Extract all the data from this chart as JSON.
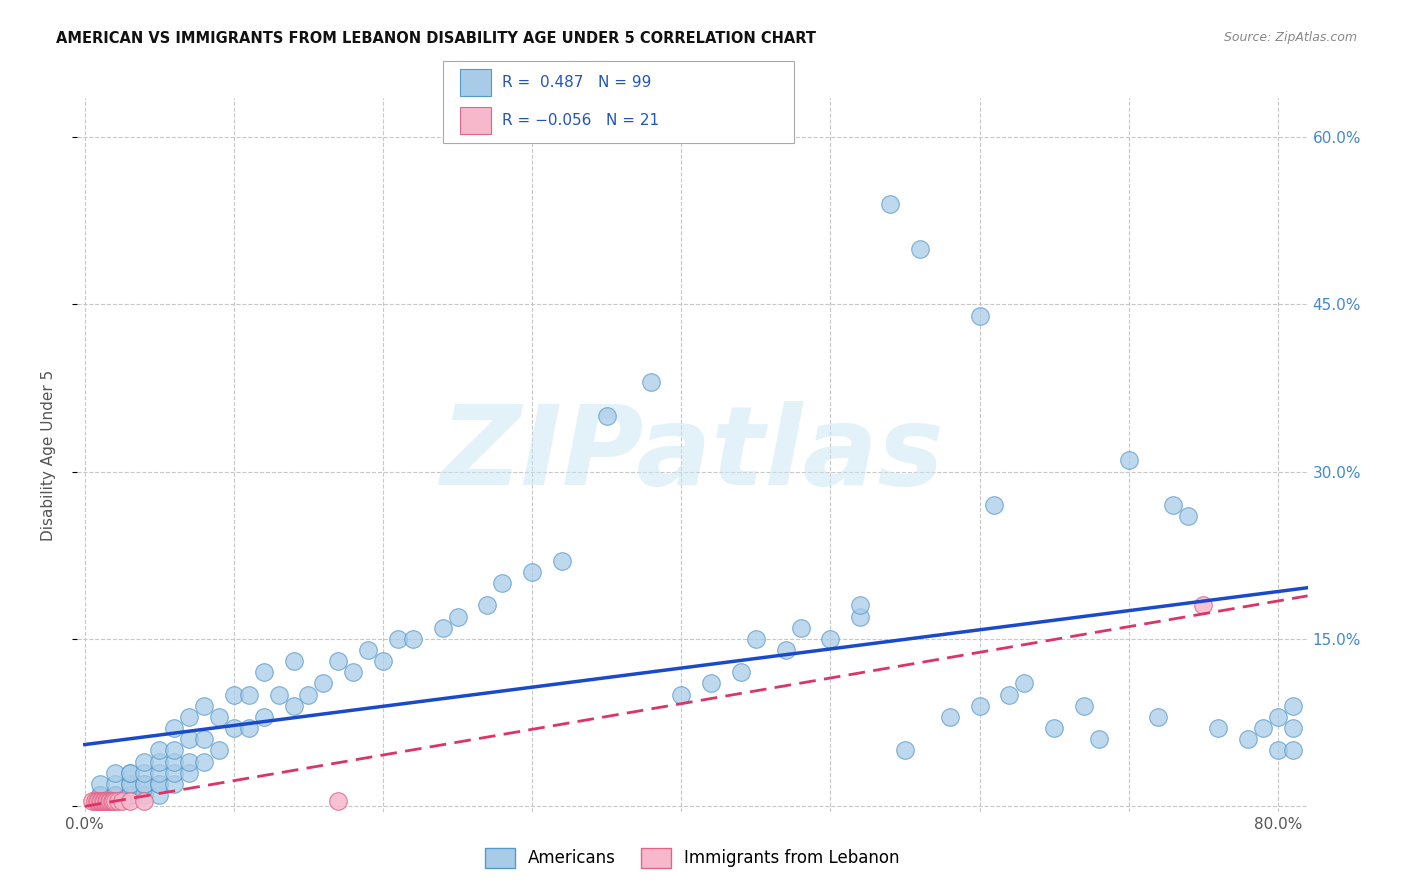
{
  "title": "AMERICAN VS IMMIGRANTS FROM LEBANON DISABILITY AGE UNDER 5 CORRELATION CHART",
  "source": "Source: ZipAtlas.com",
  "ylabel": "Disability Age Under 5",
  "xlim": [
    -0.005,
    0.82
  ],
  "ylim": [
    -0.005,
    0.635
  ],
  "xtick_positions": [
    0.0,
    0.1,
    0.2,
    0.3,
    0.4,
    0.5,
    0.6,
    0.7,
    0.8
  ],
  "xticklabels": [
    "0.0%",
    "",
    "",
    "",
    "",
    "",
    "",
    "",
    "80.0%"
  ],
  "ytick_positions": [
    0.0,
    0.15,
    0.3,
    0.45,
    0.6
  ],
  "yticklabels": [
    "",
    "15.0%",
    "30.0%",
    "45.0%",
    "60.0%"
  ],
  "grid_color": "#c8c8c8",
  "background_color": "#ffffff",
  "americans_color": "#a8cce8",
  "americans_edge_color": "#5599cc",
  "lebanon_color": "#f8b8cc",
  "lebanon_edge_color": "#e06688",
  "trend_blue_color": "#1a4acc",
  "trend_pink_color": "#dd3366",
  "trend_pink_dash": [
    6,
    3
  ],
  "watermark": "ZIPatlas",
  "legend_label_1": "Americans",
  "legend_label_2": "Immigrants from Lebanon",
  "americans_x": [
    0.01,
    0.01,
    0.01,
    0.01,
    0.02,
    0.02,
    0.02,
    0.02,
    0.02,
    0.03,
    0.03,
    0.03,
    0.03,
    0.03,
    0.03,
    0.03,
    0.04,
    0.04,
    0.04,
    0.04,
    0.04,
    0.05,
    0.05,
    0.05,
    0.05,
    0.05,
    0.05,
    0.06,
    0.06,
    0.06,
    0.06,
    0.06,
    0.07,
    0.07,
    0.07,
    0.07,
    0.08,
    0.08,
    0.08,
    0.09,
    0.09,
    0.1,
    0.1,
    0.11,
    0.11,
    0.12,
    0.12,
    0.13,
    0.14,
    0.14,
    0.15,
    0.16,
    0.17,
    0.18,
    0.19,
    0.2,
    0.21,
    0.22,
    0.24,
    0.25,
    0.27,
    0.28,
    0.3,
    0.32,
    0.35,
    0.38,
    0.4,
    0.42,
    0.44,
    0.45,
    0.47,
    0.48,
    0.5,
    0.52,
    0.54,
    0.56,
    0.58,
    0.6,
    0.61,
    0.62,
    0.63,
    0.65,
    0.67,
    0.68,
    0.7,
    0.72,
    0.74,
    0.76,
    0.78,
    0.79,
    0.8,
    0.8,
    0.81,
    0.81,
    0.81,
    0.73,
    0.6,
    0.55,
    0.52
  ],
  "americans_y": [
    0.01,
    0.01,
    0.01,
    0.02,
    0.01,
    0.01,
    0.01,
    0.02,
    0.03,
    0.01,
    0.01,
    0.01,
    0.02,
    0.02,
    0.03,
    0.03,
    0.01,
    0.02,
    0.02,
    0.03,
    0.04,
    0.01,
    0.02,
    0.02,
    0.03,
    0.04,
    0.05,
    0.02,
    0.03,
    0.04,
    0.05,
    0.07,
    0.03,
    0.04,
    0.06,
    0.08,
    0.04,
    0.06,
    0.09,
    0.05,
    0.08,
    0.07,
    0.1,
    0.07,
    0.1,
    0.08,
    0.12,
    0.1,
    0.09,
    0.13,
    0.1,
    0.11,
    0.13,
    0.12,
    0.14,
    0.13,
    0.15,
    0.15,
    0.16,
    0.17,
    0.18,
    0.2,
    0.21,
    0.22,
    0.35,
    0.38,
    0.1,
    0.11,
    0.12,
    0.15,
    0.14,
    0.16,
    0.15,
    0.17,
    0.54,
    0.5,
    0.08,
    0.09,
    0.27,
    0.1,
    0.11,
    0.07,
    0.09,
    0.06,
    0.31,
    0.08,
    0.26,
    0.07,
    0.06,
    0.07,
    0.05,
    0.08,
    0.05,
    0.07,
    0.09,
    0.27,
    0.44,
    0.05,
    0.18
  ],
  "lebanon_x": [
    0.005,
    0.007,
    0.008,
    0.009,
    0.01,
    0.011,
    0.012,
    0.013,
    0.014,
    0.015,
    0.016,
    0.017,
    0.018,
    0.019,
    0.02,
    0.022,
    0.025,
    0.03,
    0.04,
    0.17,
    0.75
  ],
  "lebanon_y": [
    0.005,
    0.005,
    0.005,
    0.005,
    0.005,
    0.005,
    0.005,
    0.005,
    0.005,
    0.005,
    0.005,
    0.005,
    0.005,
    0.005,
    0.005,
    0.005,
    0.005,
    0.005,
    0.005,
    0.005,
    0.18
  ]
}
